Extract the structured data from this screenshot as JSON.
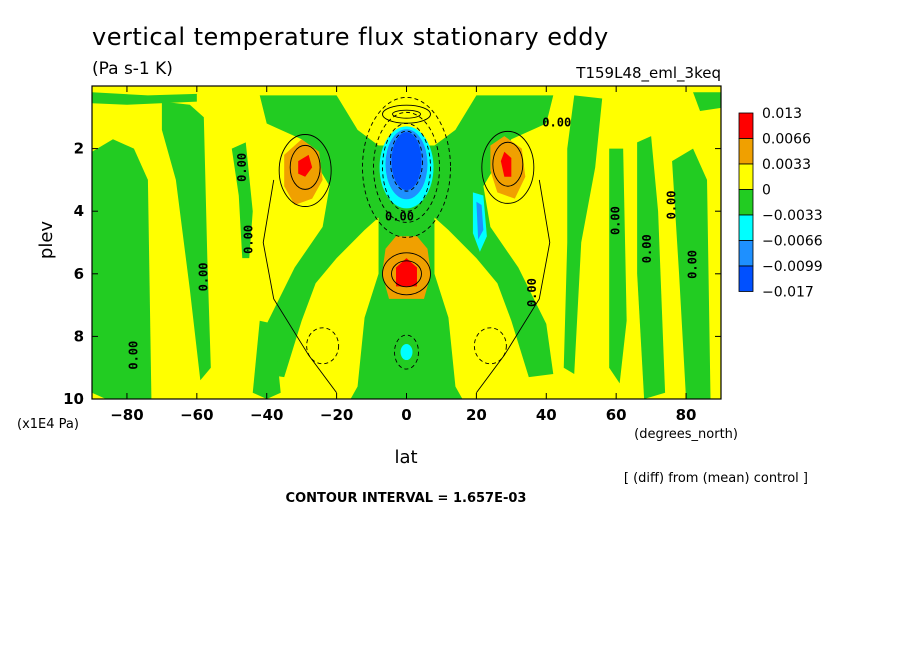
{
  "title": "vertical temperature flux stationary eddy",
  "units": "(Pa s-1 K)",
  "run_label": "T159L48_eml_3keq",
  "y_axis_label": "plev",
  "y_units": "(x1E4 Pa)",
  "x_axis_label": "lat",
  "x_units": "(degrees_north)",
  "diff_note": "[ (diff) from (mean) control ]",
  "contour_interval": "CONTOUR INTERVAL = 1.657E-03",
  "contour_label": "0.00",
  "colors": {
    "red": "#ff0000",
    "orange": "#f0a000",
    "yellow": "#ffff00",
    "green": "#22cc22",
    "cyan": "#00ffff",
    "lightblue": "#1e90ff",
    "blue": "#0050ff"
  },
  "chart_data": {
    "type": "heatmap",
    "x": {
      "min": -90,
      "max": 90,
      "ticks": [
        -80,
        -60,
        -40,
        -20,
        0,
        20,
        40,
        60,
        80
      ]
    },
    "y": {
      "min": 0,
      "max": 10,
      "inverted": true,
      "ticks": [
        2,
        4,
        6,
        8,
        10
      ]
    },
    "colorbar": {
      "levels": [
        {
          "label": "0.013",
          "color": "#ff0000"
        },
        {
          "label": "0.0066",
          "color": "#f0a000"
        },
        {
          "label": "0.0033",
          "color": "#ffff00"
        },
        {
          "label": "0",
          "color": "#22cc22"
        },
        {
          "label": "-0.0033",
          "color": "#00ffff"
        },
        {
          "label": "-0.0066",
          "color": "#1e90ff"
        },
        {
          "label": "-0.0099",
          "color": "#0050ff"
        },
        {
          "label": "-0.017",
          "color": ""
        }
      ]
    },
    "features": [
      {
        "name": "negative core",
        "lat": 0,
        "plev": 2.6,
        "sign": "negative",
        "max_level": "blue"
      },
      {
        "name": "positive center",
        "lat": 0,
        "plev": 6.0,
        "sign": "positive",
        "max_level": "red"
      },
      {
        "name": "positive south subtropics",
        "lat": -29,
        "plev": 2.6,
        "sign": "positive",
        "max_level": "red"
      },
      {
        "name": "positive north subtropics",
        "lat": 29,
        "plev": 2.5,
        "sign": "positive",
        "max_level": "red"
      },
      {
        "name": "negative north band",
        "lat": 21,
        "plev": 4.4,
        "sign": "negative",
        "max_level": "lightblue"
      },
      {
        "name": "negative near-surface",
        "lat": 0,
        "plev": 8.5,
        "sign": "negative",
        "max_level": "cyan"
      }
    ]
  }
}
